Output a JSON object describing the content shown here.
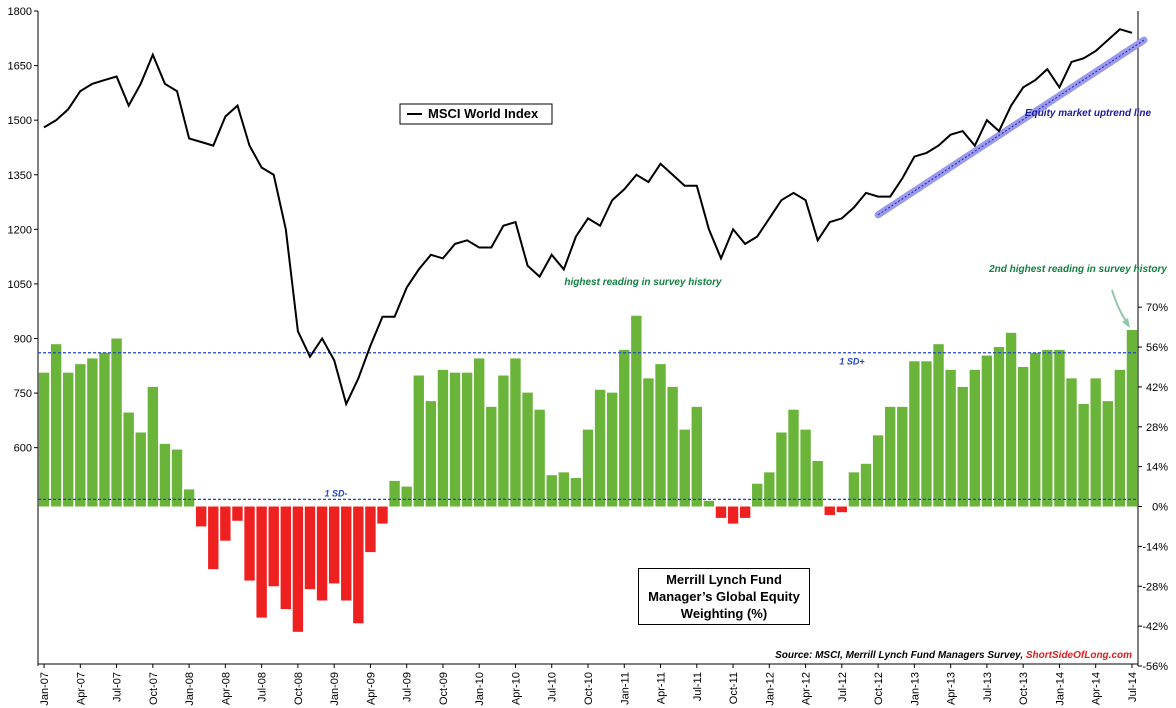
{
  "chart_data": {
    "type": "bar_line",
    "categories": [
      "Jan-07",
      null,
      null,
      "Apr-07",
      null,
      null,
      "Jul-07",
      null,
      null,
      "Oct-07",
      null,
      null,
      "Jan-08",
      null,
      null,
      "Apr-08",
      null,
      null,
      "Jul-08",
      null,
      null,
      "Oct-08",
      null,
      null,
      "Jan-09",
      null,
      null,
      "Apr-09",
      null,
      null,
      "Jul-09",
      null,
      null,
      "Oct-09",
      null,
      null,
      "Jan-10",
      null,
      null,
      "Apr-10",
      null,
      null,
      "Jul-10",
      null,
      null,
      "Oct-10",
      null,
      null,
      "Jan-11",
      null,
      null,
      "Apr-11",
      null,
      null,
      "Jul-11",
      null,
      null,
      "Oct-11",
      null,
      null,
      "Jan-12",
      null,
      null,
      "Apr-12",
      null,
      null,
      "Jul-12",
      null,
      null,
      "Oct-12",
      null,
      null,
      "Jan-13",
      null,
      null,
      "Apr-13",
      null,
      null,
      "Jul-13",
      null,
      null,
      "Oct-13",
      null,
      null,
      "Jan-14",
      null,
      null,
      "Apr-14",
      null,
      null,
      "Jul-14"
    ],
    "series": [
      {
        "name": "MSCI World Index",
        "color": "#000000",
        "kind": "line",
        "values": [
          1480,
          1500,
          1530,
          1580,
          1600,
          1610,
          1620,
          1540,
          1600,
          1680,
          1600,
          1580,
          1450,
          1440,
          1430,
          1510,
          1540,
          1430,
          1370,
          1350,
          1200,
          920,
          850,
          900,
          840,
          720,
          790,
          880,
          960,
          960,
          1040,
          1090,
          1130,
          1120,
          1160,
          1170,
          1150,
          1150,
          1210,
          1220,
          1100,
          1070,
          1130,
          1090,
          1180,
          1230,
          1210,
          1280,
          1310,
          1350,
          1330,
          1380,
          1350,
          1320,
          1320,
          1200,
          1120,
          1200,
          1160,
          1180,
          1230,
          1280,
          1300,
          1280,
          1170,
          1220,
          1230,
          1260,
          1300,
          1290,
          1290,
          1340,
          1400,
          1410,
          1430,
          1460,
          1470,
          1430,
          1500,
          1470,
          1540,
          1590,
          1610,
          1640,
          1590,
          1660,
          1670,
          1690,
          1720,
          1750,
          1740
        ]
      },
      {
        "name": "Merrill Lynch Fund Manager’s Global Equity Weighting (%)",
        "kind": "bar",
        "axis": "y2",
        "color": "#6ab43a",
        "negative_color": "#ee2020",
        "values": [
          47,
          57,
          47,
          50,
          52,
          54,
          59,
          33,
          26,
          42,
          22,
          20,
          6,
          -7,
          -22,
          -12,
          -5,
          -26,
          -39,
          -28,
          -36,
          -44,
          -29,
          -33,
          -27,
          -33,
          -41,
          -16,
          -6,
          9,
          7,
          46,
          37,
          48,
          47,
          47,
          52,
          35,
          46,
          52,
          40,
          34,
          11,
          12,
          10,
          27,
          41,
          40,
          55,
          67,
          45,
          50,
          42,
          27,
          35,
          2,
          -4,
          -6,
          -4,
          8,
          12,
          26,
          34,
          27,
          16,
          -3,
          -2,
          12,
          15,
          25,
          35,
          35,
          51,
          51,
          57,
          48,
          42,
          48,
          53,
          56,
          61,
          49,
          54,
          55,
          55,
          45,
          36,
          45,
          37,
          48,
          62
        ]
      }
    ],
    "ylim": [
      0,
      1800
    ],
    "yticks": [
      600,
      750,
      900,
      1050,
      1200,
      1350,
      1500,
      1650,
      1800
    ],
    "y2lim": [
      -56,
      174
    ],
    "y2ticks": [
      {
        "value": -56,
        "label": "-56%"
      },
      {
        "value": -42,
        "label": "-42%"
      },
      {
        "value": -28,
        "label": "-28%"
      },
      {
        "value": -14,
        "label": "-14%"
      },
      {
        "value": 0,
        "label": "0%"
      },
      {
        "value": 14,
        "label": "14%"
      },
      {
        "value": 28,
        "label": "28%"
      },
      {
        "value": 42,
        "label": "42%"
      },
      {
        "value": 56,
        "label": "56%"
      },
      {
        "value": 70,
        "label": "70%"
      }
    ],
    "sd_lines": [
      {
        "label": "1 SD+",
        "value": 54,
        "color": "#2244cc"
      },
      {
        "label": "1 SD-",
        "value": 2.5,
        "color": "#2244cc"
      }
    ],
    "trendline": {
      "label": "Equity market uptrend line",
      "from": "Oct-12",
      "to": "Jul-14",
      "values": [
        1240,
        1720
      ],
      "color": "#9999ee"
    },
    "annotations": {
      "highest": "highest reading in survey history",
      "second_highest": "2nd highest reading in survey history"
    },
    "source": "Source: MSCI, Merrill Lynch Fund Managers Survey,",
    "source_site": "ShortSideOfLong.com"
  }
}
